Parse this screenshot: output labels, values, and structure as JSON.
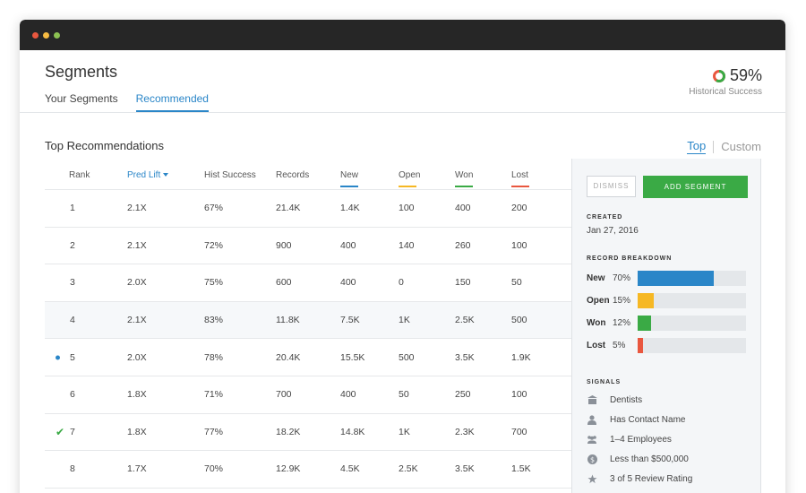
{
  "header": {
    "title": "Segments",
    "tabs": [
      {
        "label": "Your Segments",
        "active": false
      },
      {
        "label": "Recommended",
        "active": true
      }
    ],
    "historical_success": {
      "value": "59%",
      "label": "Historical Success",
      "fraction": 0.59
    }
  },
  "section": {
    "title": "Top Recommendations",
    "toggle": {
      "top": "Top",
      "custom": "Custom"
    }
  },
  "table": {
    "columns": {
      "rank": "Rank",
      "lift": "Pred Lift",
      "hist": "Hist Success",
      "records": "Records",
      "new": "New",
      "open": "Open",
      "won": "Won",
      "lost": "Lost"
    },
    "rows": [
      {
        "rank": "1",
        "lift": "2.1X",
        "hist": "67%",
        "records": "21.4K",
        "new": "1.4K",
        "open": "100",
        "won": "400",
        "lost": "200"
      },
      {
        "rank": "2",
        "lift": "2.1X",
        "hist": "72%",
        "records": "900",
        "new": "400",
        "open": "140",
        "won": "260",
        "lost": "100"
      },
      {
        "rank": "3",
        "lift": "2.0X",
        "hist": "75%",
        "records": "600",
        "new": "400",
        "open": "0",
        "won": "150",
        "lost": "50"
      },
      {
        "rank": "4",
        "lift": "2.1X",
        "hist": "83%",
        "records": "11.8K",
        "new": "7.5K",
        "open": "1K",
        "won": "2.5K",
        "lost": "500"
      },
      {
        "rank": "5",
        "lift": "2.0X",
        "hist": "78%",
        "records": "20.4K",
        "new": "15.5K",
        "open": "500",
        "won": "3.5K",
        "lost": "1.9K"
      },
      {
        "rank": "6",
        "lift": "1.8X",
        "hist": "71%",
        "records": "700",
        "new": "400",
        "open": "50",
        "won": "250",
        "lost": "100"
      },
      {
        "rank": "7",
        "lift": "1.8X",
        "hist": "77%",
        "records": "18.2K",
        "new": "14.8K",
        "open": "1K",
        "won": "2.3K",
        "lost": "700"
      },
      {
        "rank": "8",
        "lift": "1.7X",
        "hist": "70%",
        "records": "12.9K",
        "new": "4.5K",
        "open": "2.5K",
        "won": "3.5K",
        "lost": "1.5K"
      }
    ]
  },
  "panel": {
    "dismiss": "DISMISS",
    "add_segment": "ADD SEGMENT",
    "created_label": "CREATED",
    "created_value": "Jan 27, 2016",
    "breakdown_label": "RECORD BREAKDOWN",
    "breakdown": [
      {
        "name": "New",
        "pct": "70%",
        "fraction": 0.7,
        "color": "#2a86c8"
      },
      {
        "name": "Open",
        "pct": "15%",
        "fraction": 0.15,
        "color": "#f6b824"
      },
      {
        "name": "Won",
        "pct": "12%",
        "fraction": 0.12,
        "color": "#3aaa45"
      },
      {
        "name": "Lost",
        "pct": "5%",
        "fraction": 0.05,
        "color": "#e9573f"
      }
    ],
    "signals_label": "SIGNALS",
    "signals": [
      {
        "icon": "building-icon",
        "text": "Dentists"
      },
      {
        "icon": "person-icon",
        "text": "Has Contact Name"
      },
      {
        "icon": "people-icon",
        "text": "1–4 Employees"
      },
      {
        "icon": "dollar-icon",
        "text": "Less than $500,000"
      },
      {
        "icon": "star-icon",
        "text": "3 of 5 Review Rating"
      }
    ]
  },
  "colors": {
    "accent": "#2a86c8",
    "new": "#2a86c8",
    "open": "#f6b824",
    "won": "#3aaa45",
    "lost": "#e9573f"
  }
}
